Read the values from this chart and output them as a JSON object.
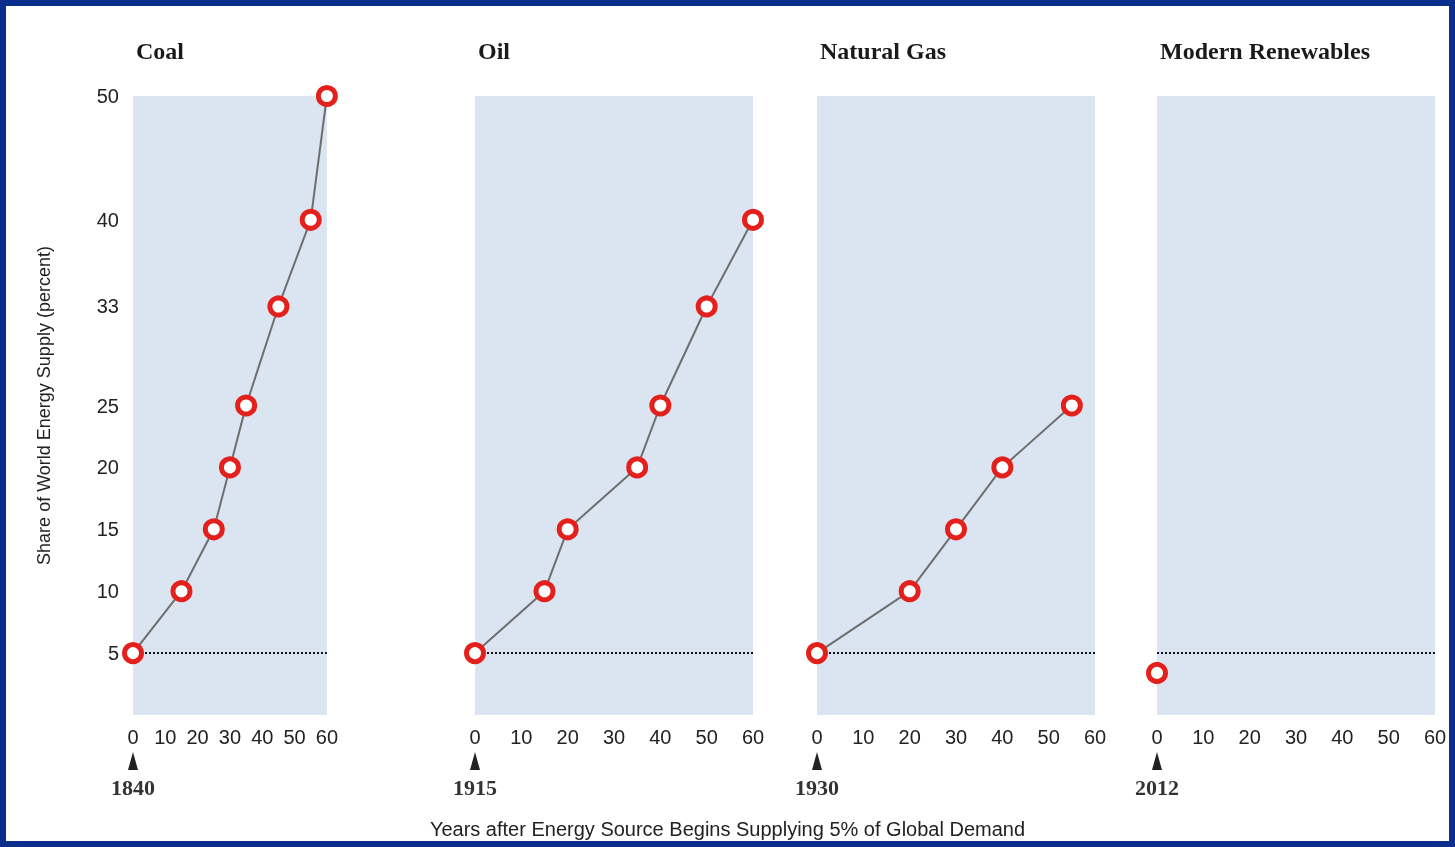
{
  "chart_data": [
    {
      "type": "line",
      "title": "Coal",
      "ylabel": "Share of World Energy Supply (percent)",
      "xlabel": "Years after Energy Source Begins Supplying 5% of Global Demand",
      "annotations": [
        "1840"
      ],
      "x": [
        0,
        15,
        25,
        30,
        35,
        45,
        55,
        60
      ],
      "series": [
        {
          "color": "#e3201b",
          "values": [
            5,
            10,
            15,
            20,
            25,
            33,
            40,
            50
          ]
        }
      ],
      "xlim": [
        0,
        60
      ],
      "xticks": [
        0,
        10,
        20,
        30,
        40,
        50,
        60
      ],
      "ylim": [
        0,
        50
      ],
      "yticks": [
        5,
        10,
        15,
        20,
        25,
        33,
        40,
        50
      ],
      "ref_lines": [
        {
          "axis": "y",
          "value": 5,
          "color": "#111111",
          "line_style": "dotted"
        }
      ],
      "marker": "circle",
      "line_style": "solid",
      "grid": false
    },
    {
      "type": "line",
      "title": "Oil",
      "annotations": [
        "1915"
      ],
      "x": [
        0,
        15,
        20,
        35,
        40,
        50,
        60
      ],
      "series": [
        {
          "color": "#e3201b",
          "values": [
            5,
            10,
            15,
            20,
            25,
            33,
            40
          ]
        }
      ],
      "xlim": [
        0,
        60
      ],
      "xticks": [
        0,
        10,
        20,
        30,
        40,
        50,
        60
      ],
      "ylim": [
        0,
        50
      ],
      "ref_lines": [
        {
          "axis": "y",
          "value": 5,
          "color": "#111111",
          "line_style": "dotted"
        }
      ],
      "marker": "circle",
      "line_style": "solid",
      "grid": false,
      "tick_labels": "x"
    },
    {
      "type": "line",
      "title": "Natural Gas",
      "annotations": [
        "1930"
      ],
      "x": [
        0,
        20,
        30,
        40,
        55
      ],
      "series": [
        {
          "color": "#e3201b",
          "values": [
            5,
            10,
            15,
            20,
            25
          ]
        }
      ],
      "xlim": [
        0,
        60
      ],
      "xticks": [
        0,
        10,
        20,
        30,
        40,
        50,
        60
      ],
      "ylim": [
        0,
        50
      ],
      "ref_lines": [
        {
          "axis": "y",
          "value": 5,
          "color": "#111111",
          "line_style": "dotted"
        }
      ],
      "marker": "circle",
      "line_style": "solid",
      "grid": false,
      "tick_labels": "x"
    },
    {
      "type": "line",
      "title": "Modern Renewables",
      "annotations": [
        "2012"
      ],
      "x": [
        0
      ],
      "series": [
        {
          "color": "#e3201b",
          "values": [
            3.4
          ]
        }
      ],
      "xlim": [
        0,
        60
      ],
      "xticks": [
        0,
        10,
        20,
        30,
        40,
        50,
        60
      ],
      "ylim": [
        0,
        50
      ],
      "ref_lines": [
        {
          "axis": "y",
          "value": 5,
          "color": "#111111",
          "line_style": "dotted"
        }
      ],
      "marker": "circle",
      "line_style": "solid",
      "grid": false,
      "tick_labels": "x"
    }
  ]
}
